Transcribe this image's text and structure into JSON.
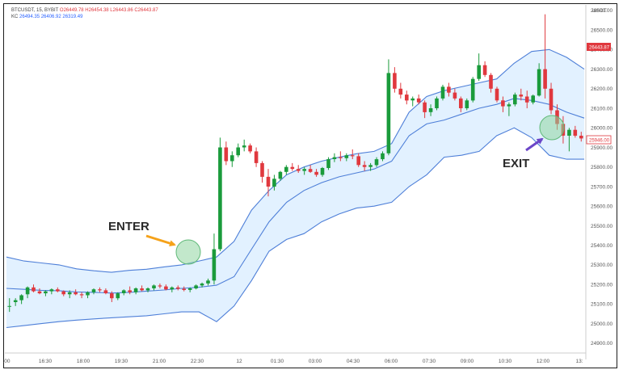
{
  "header": {
    "symbol_line": "BTCUSDT, 15, BYBIT",
    "ohlc": "O26449.78 H26454.38 L26443.86 C26443.87",
    "indicator_name": "KC",
    "indicator_values": "26494.35 26406.92 26319.49"
  },
  "currency": "USDT",
  "price_tag": {
    "value": "26443.87",
    "color": "#e0383e"
  },
  "price_tag_2": {
    "value": "25946.00",
    "color": "#e0383e"
  },
  "annotations": {
    "enter": "ENTER",
    "exit": "EXIT",
    "enter_arrow_color": "#f5a21a",
    "exit_arrow_color": "#6b46c8",
    "marker_color": "#8fd6a0"
  },
  "colors": {
    "up": "#1a9b3b",
    "down": "#e0383e",
    "band_line": "#4e7fd8",
    "band_fill": "#ddeeff"
  },
  "chart_data": {
    "type": "candlestick",
    "ylim": [
      24850,
      26620
    ],
    "y_ticks": [
      "26600.00",
      "26500.00",
      "26400.00",
      "26300.00",
      "26200.00",
      "26100.00",
      "26000.00",
      "25900.00",
      "25800.00",
      "25700.00",
      "25600.00",
      "25500.00",
      "25400.00",
      "25300.00",
      "25200.00",
      "25100.00",
      "25000.00",
      "24900.00"
    ],
    "x_ticks": [
      ":00",
      "16:30",
      "18:00",
      "19:30",
      "21:00",
      "22:30",
      "12",
      "01:30",
      "03:00",
      "04:30",
      "06:00",
      "07:30",
      "09:00",
      "10:30",
      "12:00",
      "13:"
    ],
    "keltner": {
      "upper": [
        25340,
        25320,
        25310,
        25300,
        25280,
        25270,
        25262,
        25272,
        25278,
        25290,
        25300,
        25320,
        25340,
        25420,
        25580,
        25680,
        25760,
        25800,
        25830,
        25850,
        25868,
        25880,
        25920,
        26080,
        26160,
        26190,
        26210,
        26230,
        26250,
        26330,
        26390,
        26400,
        26360,
        26300
      ],
      "middle": [
        25180,
        25175,
        25170,
        25168,
        25162,
        25160,
        25156,
        25160,
        25166,
        25172,
        25180,
        25186,
        25196,
        25240,
        25380,
        25520,
        25620,
        25680,
        25720,
        25750,
        25770,
        25790,
        25830,
        25960,
        26020,
        26040,
        26070,
        26100,
        26120,
        26150,
        26140,
        26120,
        26080,
        26050
      ],
      "lower": [
        24980,
        24990,
        25000,
        25010,
        25018,
        25024,
        25030,
        25035,
        25040,
        25050,
        25060,
        25060,
        25010,
        25090,
        25220,
        25370,
        25430,
        25460,
        25520,
        25560,
        25590,
        25600,
        25620,
        25700,
        25760,
        25850,
        25860,
        25880,
        25960,
        26000,
        25950,
        25860,
        25840,
        25840
      ]
    },
    "candles": [
      [
        25090,
        25130,
        25060,
        25090
      ],
      [
        25110,
        25130,
        25090,
        25120
      ],
      [
        25120,
        25150,
        25100,
        25145
      ],
      [
        25150,
        25190,
        25130,
        25185
      ],
      [
        25185,
        25200,
        25160,
        25165
      ],
      [
        25165,
        25180,
        25150,
        25155
      ],
      [
        25155,
        25170,
        25140,
        25165
      ],
      [
        25165,
        25180,
        25150,
        25175
      ],
      [
        25175,
        25185,
        25160,
        25165
      ],
      [
        25165,
        25170,
        25140,
        25150
      ],
      [
        25150,
        25170,
        25130,
        25160
      ],
      [
        25160,
        25175,
        25145,
        25150
      ],
      [
        25150,
        25160,
        25130,
        25145
      ],
      [
        25145,
        25165,
        25130,
        25160
      ],
      [
        25160,
        25180,
        25150,
        25175
      ],
      [
        25175,
        25185,
        25160,
        25170
      ],
      [
        25170,
        25180,
        25150,
        25155
      ],
      [
        25155,
        25165,
        25110,
        25130
      ],
      [
        25130,
        25160,
        25120,
        25155
      ],
      [
        25155,
        25175,
        25145,
        25170
      ],
      [
        25170,
        25190,
        25150,
        25160
      ],
      [
        25160,
        25185,
        25150,
        25180
      ],
      [
        25180,
        25195,
        25165,
        25170
      ],
      [
        25170,
        25185,
        25160,
        25180
      ],
      [
        25180,
        25200,
        25170,
        25195
      ],
      [
        25195,
        25205,
        25180,
        25190
      ],
      [
        25190,
        25200,
        25170,
        25175
      ],
      [
        25175,
        25190,
        25160,
        25185
      ],
      [
        25185,
        25195,
        25170,
        25178
      ],
      [
        25178,
        25190,
        25165,
        25172
      ],
      [
        25172,
        25185,
        25160,
        25180
      ],
      [
        25180,
        25200,
        25175,
        25195
      ],
      [
        25195,
        25210,
        25185,
        25205
      ],
      [
        25205,
        25230,
        25195,
        25220
      ],
      [
        25220,
        25460,
        25200,
        25380
      ],
      [
        25380,
        25950,
        25370,
        25900
      ],
      [
        25900,
        25930,
        25810,
        25830
      ],
      [
        25830,
        25880,
        25800,
        25860
      ],
      [
        25860,
        25920,
        25850,
        25900
      ],
      [
        25900,
        25940,
        25880,
        25910
      ],
      [
        25910,
        25920,
        25870,
        25880
      ],
      [
        25880,
        25900,
        25800,
        25820
      ],
      [
        25820,
        25830,
        25720,
        25750
      ],
      [
        25750,
        25790,
        25650,
        25700
      ],
      [
        25700,
        25760,
        25680,
        25740
      ],
      [
        25740,
        25780,
        25730,
        25775
      ],
      [
        25775,
        25810,
        25760,
        25800
      ],
      [
        25800,
        25820,
        25780,
        25790
      ],
      [
        25790,
        25810,
        25770,
        25780
      ],
      [
        25780,
        25800,
        25760,
        25790
      ],
      [
        25790,
        25810,
        25770,
        25775
      ],
      [
        25775,
        25790,
        25750,
        25760
      ],
      [
        25760,
        25800,
        25750,
        25795
      ],
      [
        25795,
        25850,
        25785,
        25840
      ],
      [
        25840,
        25870,
        25825,
        25850
      ],
      [
        25850,
        25880,
        25830,
        25845
      ],
      [
        25845,
        25870,
        25830,
        25860
      ],
      [
        25860,
        25890,
        25840,
        25855
      ],
      [
        25855,
        25870,
        25800,
        25810
      ],
      [
        25810,
        25830,
        25780,
        25800
      ],
      [
        25800,
        25820,
        25780,
        25810
      ],
      [
        25810,
        25850,
        25800,
        25840
      ],
      [
        25840,
        25880,
        25830,
        25870
      ],
      [
        25870,
        26350,
        25860,
        26280
      ],
      [
        26280,
        26310,
        26180,
        26200
      ],
      [
        26200,
        26230,
        26150,
        26170
      ],
      [
        26170,
        26190,
        26120,
        26140
      ],
      [
        26140,
        26160,
        26110,
        26150
      ],
      [
        26150,
        26170,
        26120,
        26130
      ],
      [
        26130,
        26140,
        26050,
        26080
      ],
      [
        26080,
        26120,
        26060,
        26100
      ],
      [
        26100,
        26160,
        26090,
        26150
      ],
      [
        26150,
        26220,
        26140,
        26210
      ],
      [
        26210,
        26230,
        26160,
        26180
      ],
      [
        26180,
        26200,
        26140,
        26150
      ],
      [
        26150,
        26160,
        26080,
        26100
      ],
      [
        26100,
        26150,
        26090,
        26140
      ],
      [
        26140,
        26260,
        26130,
        26250
      ],
      [
        26250,
        26380,
        26240,
        26320
      ],
      [
        26320,
        26340,
        26260,
        26270
      ],
      [
        26270,
        26280,
        26180,
        26200
      ],
      [
        26200,
        26210,
        26130,
        26140
      ],
      [
        26140,
        26160,
        26080,
        26110
      ],
      [
        26110,
        26130,
        26060,
        26120
      ],
      [
        26120,
        26180,
        26110,
        26170
      ],
      [
        26170,
        26200,
        26140,
        26160
      ],
      [
        26160,
        26190,
        26100,
        26130
      ],
      [
        26130,
        26170,
        26120,
        26165
      ],
      [
        26165,
        26330,
        26160,
        26300
      ],
      [
        26300,
        26580,
        26150,
        26200
      ],
      [
        26200,
        26230,
        26070,
        26090
      ],
      [
        26090,
        26120,
        25990,
        26020
      ],
      [
        26020,
        26060,
        25920,
        25960
      ],
      [
        25960,
        26000,
        25880,
        25990
      ],
      [
        25990,
        26010,
        25950,
        25960
      ],
      [
        25960,
        25980,
        25930,
        25946
      ]
    ]
  }
}
